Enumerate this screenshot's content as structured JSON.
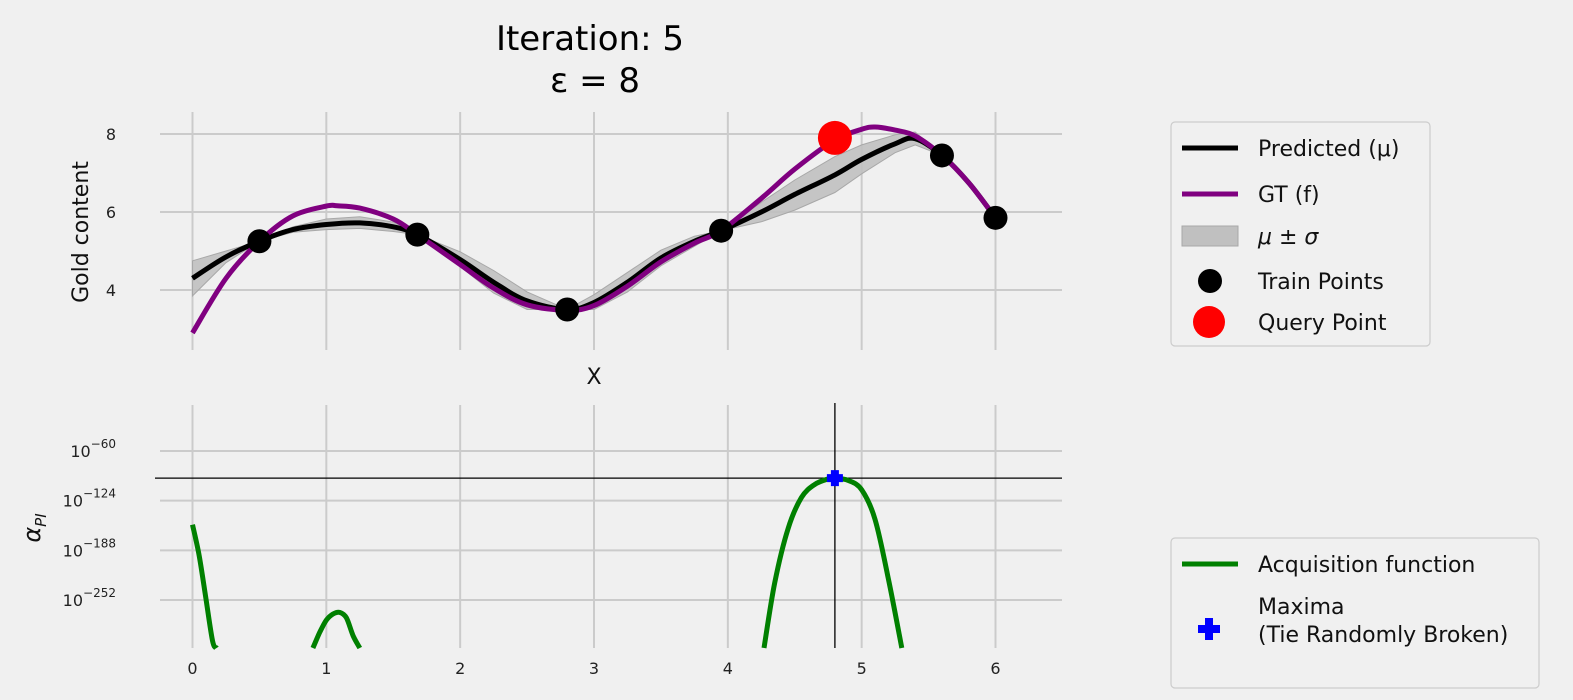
{
  "title": {
    "line1": "Iteration: 5",
    "line2": "ε = 8"
  },
  "colors": {
    "background": "#f0f0f0",
    "grid": "#cbcbcb",
    "predicted": "#000000",
    "gt": "#800080",
    "band": "#c0c0c0",
    "train": "#000000",
    "query": "#ff0000",
    "acq": "#008000",
    "maxima": "#0000ff"
  },
  "chart_data": [
    {
      "type": "line",
      "xlim": [
        -0.5,
        6.5
      ],
      "ylim": [
        2.5,
        8.8
      ],
      "grid": true,
      "xlabel": "X",
      "ylabel": "Gold content",
      "xticks": [
        0,
        1,
        2,
        3,
        4,
        5,
        6
      ],
      "xtick_labels": [
        "",
        "",
        "",
        "",
        "",
        "",
        ""
      ],
      "yticks": [
        4,
        6,
        8
      ],
      "ytick_labels": [
        "4",
        "6",
        "8"
      ],
      "legend_position": "outside-right-top",
      "series": [
        {
          "name": "Predicted (μ)",
          "kind": "line",
          "x": [
            0,
            0.25,
            0.5,
            0.75,
            1.0,
            1.25,
            1.5,
            1.68,
            2.0,
            2.25,
            2.5,
            2.8,
            3.0,
            3.25,
            3.5,
            3.75,
            3.95,
            4.25,
            4.5,
            4.8,
            5.0,
            5.25,
            5.4,
            5.6,
            5.8,
            6.0
          ],
          "y": [
            4.3,
            4.85,
            5.25,
            5.55,
            5.68,
            5.72,
            5.62,
            5.42,
            4.78,
            4.2,
            3.72,
            3.5,
            3.68,
            4.2,
            4.82,
            5.25,
            5.52,
            6.0,
            6.45,
            6.95,
            7.35,
            7.75,
            7.88,
            7.45,
            6.75,
            5.85
          ]
        },
        {
          "name": "GT (f)",
          "kind": "line",
          "x": [
            0,
            0.25,
            0.5,
            0.75,
            1.0,
            1.08,
            1.25,
            1.5,
            1.68,
            2.0,
            2.25,
            2.5,
            2.8,
            3.0,
            3.25,
            3.5,
            3.75,
            3.95,
            4.25,
            4.5,
            4.8,
            5.0,
            5.1,
            5.25,
            5.4,
            5.6,
            5.8,
            6.0
          ],
          "y": [
            2.9,
            4.3,
            5.25,
            5.9,
            6.15,
            6.16,
            6.1,
            5.82,
            5.42,
            4.65,
            4.05,
            3.62,
            3.48,
            3.6,
            4.1,
            4.72,
            5.2,
            5.52,
            6.35,
            7.1,
            7.85,
            8.12,
            8.18,
            8.1,
            7.95,
            7.45,
            6.75,
            5.85
          ]
        },
        {
          "name": "μ ± σ",
          "kind": "band",
          "x": [
            0,
            0.25,
            0.5,
            0.75,
            1.0,
            1.25,
            1.5,
            1.68,
            2.0,
            2.25,
            2.5,
            2.8,
            3.0,
            3.25,
            3.5,
            3.75,
            3.95,
            4.25,
            4.5,
            4.8,
            5.0,
            5.25,
            5.4,
            5.6,
            5.8,
            6.0
          ],
          "lower": [
            3.85,
            4.7,
            5.25,
            5.48,
            5.55,
            5.58,
            5.5,
            5.42,
            4.6,
            3.92,
            3.5,
            3.5,
            3.5,
            3.95,
            4.62,
            5.12,
            5.52,
            5.75,
            6.05,
            6.5,
            6.98,
            7.52,
            7.72,
            7.45,
            6.75,
            5.85
          ],
          "upper": [
            4.75,
            5.0,
            5.25,
            5.62,
            5.82,
            5.88,
            5.74,
            5.42,
            4.98,
            4.5,
            3.95,
            3.5,
            3.88,
            4.45,
            5.02,
            5.38,
            5.52,
            6.25,
            6.82,
            7.42,
            7.72,
            7.98,
            8.05,
            7.45,
            6.75,
            5.85
          ]
        },
        {
          "name": "Train Points",
          "kind": "scatter",
          "x": [
            0.5,
            1.68,
            2.8,
            3.95,
            5.6,
            6.0
          ],
          "y": [
            5.25,
            5.42,
            3.5,
            5.52,
            7.45,
            5.85
          ]
        },
        {
          "name": "Query Point",
          "kind": "scatter",
          "x": [
            4.8
          ],
          "y": [
            7.9
          ]
        }
      ]
    },
    {
      "type": "line",
      "xlim": [
        -0.5,
        6.5
      ],
      "ylim": [
        -330,
        0
      ],
      "yscale": "log",
      "grid": true,
      "xlabel": "",
      "ylabel": "α_PI",
      "xticks": [
        0,
        1,
        2,
        3,
        4,
        5,
        6
      ],
      "xtick_labels": [
        "0",
        "1",
        "2",
        "3",
        "4",
        "5",
        "6"
      ],
      "yticks": [
        -60,
        -124,
        -188,
        -252
      ],
      "ytick_labels": [
        {
          "base": "10",
          "exp": "−60"
        },
        {
          "base": "10",
          "exp": "−124"
        },
        {
          "base": "10",
          "exp": "−188"
        },
        {
          "base": "10",
          "exp": "−252"
        }
      ],
      "legend_position": "outside-right-bottom",
      "series": [
        {
          "name": "Acquisition function",
          "kind": "line-segments",
          "segments": [
            {
              "x": [
                0,
                0.05,
                0.1,
                0.15,
                0.18
              ],
              "y": [
                -155,
                -195,
                -250,
                -305,
                -330
              ]
            },
            {
              "x": [
                0.9,
                0.95,
                1.0,
                1.05,
                1.1,
                1.15,
                1.2,
                1.25
              ],
              "y": [
                -330,
                -294,
                -278,
                -270,
                -268,
                -275,
                -298,
                -330
              ]
            },
            {
              "x": [
                4.27,
                4.35,
                4.45,
                4.55,
                4.65,
                4.75,
                4.8,
                4.9,
                5.0,
                5.1,
                5.2,
                5.3
              ],
              "y": [
                -330,
                -230,
                -160,
                -120,
                -103,
                -96,
                -95,
                -98,
                -110,
                -148,
                -225,
                -330
              ]
            }
          ]
        },
        {
          "name": "Maxima\n(Tie Randomly Broken)",
          "kind": "scatter",
          "x": [
            4.8
          ],
          "y": [
            -95
          ]
        }
      ],
      "reference_lines": {
        "x": 4.8,
        "y": -95
      }
    }
  ]
}
